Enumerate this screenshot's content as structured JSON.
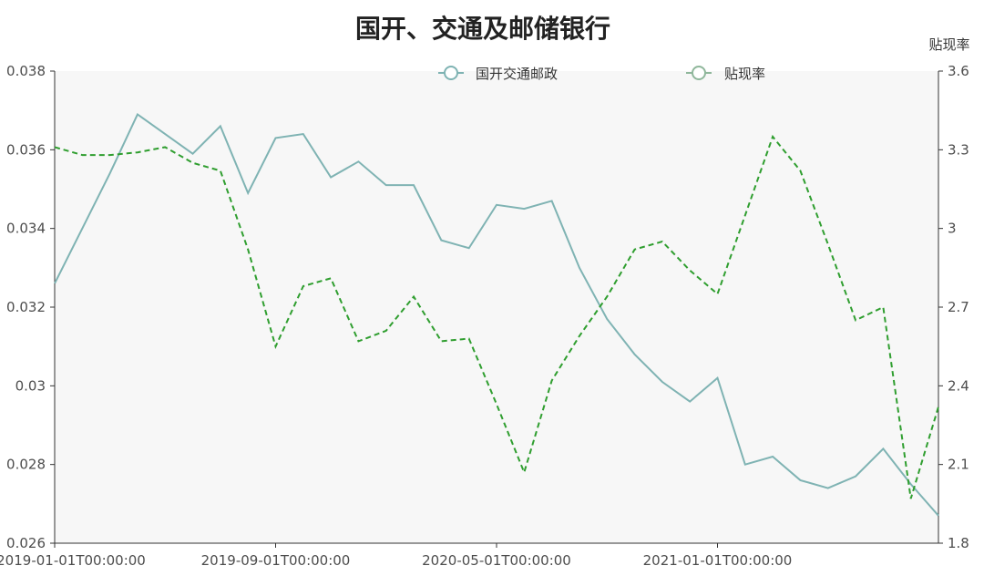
{
  "colors": {
    "title": "#222222",
    "axis": "#333333",
    "grid_bg": "#f7f7f7",
    "series_1": "#7fb3b3",
    "series_2": "#2f9e2f",
    "legend_marker_1": "#7fb3b3",
    "legend_marker_2": "#8fb79b"
  },
  "chart_data": {
    "type": "line",
    "title": "国开、交通及邮储银行",
    "legend": {
      "placement": "top-center",
      "items": [
        {
          "name": "国开交通邮政",
          "icon_name": "legend-circle-line-icon"
        },
        {
          "name": "贴现率",
          "icon_name": "legend-circle-line-icon"
        }
      ]
    },
    "x_axis": {
      "tick_labels": [
        "2019-01-01T00:00:00",
        "2019-09-01T00:00:00",
        "2020-05-01T00:00:00",
        "2021-01-01T00:00:00"
      ]
    },
    "y_axis_left": {
      "ylim": [
        0.026,
        0.038
      ],
      "tick_labels": [
        "0.026",
        "0.028",
        "0.03",
        "0.032",
        "0.034",
        "0.036",
        "0.038"
      ]
    },
    "y_axis_right": {
      "name": "贴现率",
      "ylim": [
        1.8,
        3.6
      ],
      "tick_labels": [
        "1.8",
        "2.1",
        "2.4",
        "2.7",
        "3",
        "3.3",
        "3.6"
      ]
    },
    "series": [
      {
        "name": "国开交通邮政",
        "axis": "left",
        "style": "solid",
        "values": [
          0.0326,
          0.034,
          0.0354,
          0.0369,
          0.0364,
          0.0359,
          0.0366,
          0.0349,
          0.0363,
          0.0364,
          0.0353,
          0.0357,
          0.0351,
          0.0351,
          0.0337,
          0.0335,
          0.0346,
          0.0345,
          0.0347,
          0.033,
          0.0317,
          0.0308,
          0.0301,
          0.0296,
          0.0302,
          0.028,
          0.0282,
          0.0276,
          0.0274,
          0.0277,
          0.0284,
          0.0275,
          0.0267
        ]
      },
      {
        "name": "贴现率",
        "axis": "right",
        "style": "dashed",
        "values": [
          3.31,
          3.28,
          3.28,
          3.29,
          3.31,
          3.25,
          3.22,
          2.92,
          2.55,
          2.78,
          2.81,
          2.57,
          2.61,
          2.74,
          2.57,
          2.58,
          2.33,
          2.07,
          2.42,
          2.59,
          2.74,
          2.92,
          2.95,
          2.84,
          2.75,
          3.05,
          3.35,
          3.22,
          2.94,
          2.65,
          2.7,
          1.97,
          2.32
        ]
      }
    ]
  }
}
